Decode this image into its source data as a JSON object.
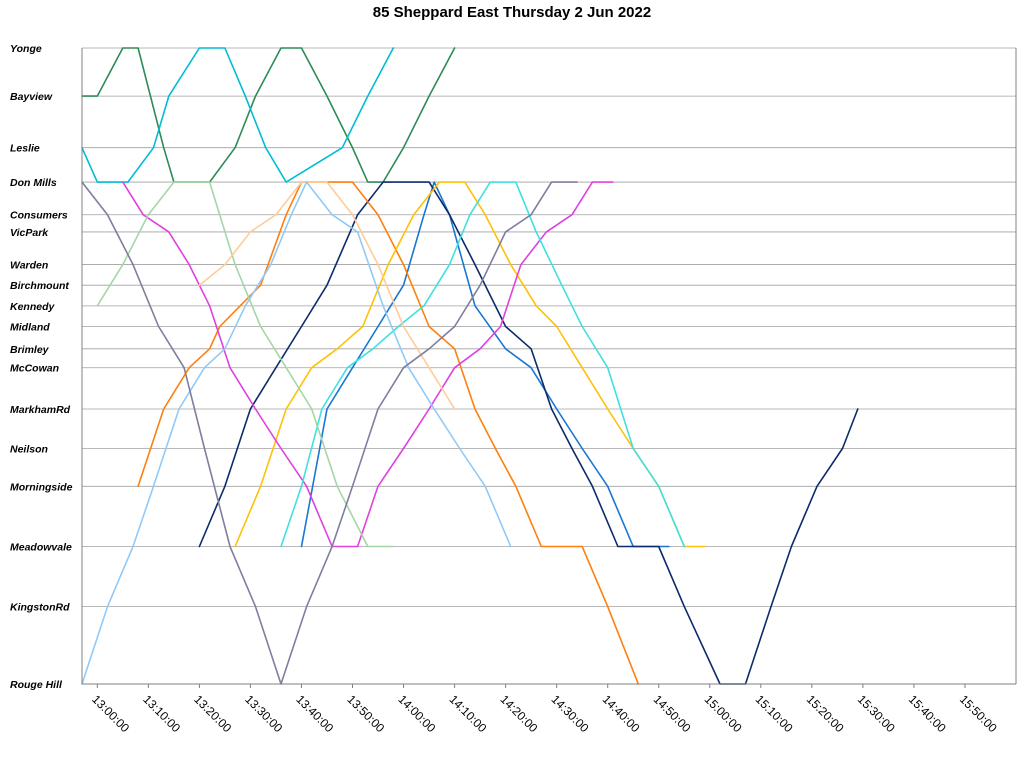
{
  "chart_data": {
    "type": "line",
    "title": "85 Sheppard East Thursday 2 Jun 2022",
    "xlabel": "",
    "ylabel": "",
    "x_axis": {
      "kind": "time",
      "range": [
        "12:57:00",
        "16:00:00"
      ],
      "ticks": [
        "13:00:00",
        "13:10:00",
        "13:20:00",
        "13:30:00",
        "13:40:00",
        "13:50:00",
        "14:00:00",
        "14:10:00",
        "14:20:00",
        "14:30:00",
        "14:40:00",
        "14:50:00",
        "15:00:00",
        "15:10:00",
        "15:20:00",
        "15:30:00",
        "15:40:00",
        "15:50:00"
      ]
    },
    "y_axis": {
      "kind": "stops",
      "stops": [
        {
          "name": "Yonge",
          "dist": 0
        },
        {
          "name": "Bayview",
          "dist": 1.4
        },
        {
          "name": "Leslie",
          "dist": 2.9
        },
        {
          "name": "Don Mills",
          "dist": 3.9
        },
        {
          "name": "Consumers",
          "dist": 4.85
        },
        {
          "name": "VicPark",
          "dist": 5.35
        },
        {
          "name": "Warden",
          "dist": 6.3
        },
        {
          "name": "Birchmount",
          "dist": 6.9
        },
        {
          "name": "Kennedy",
          "dist": 7.5
        },
        {
          "name": "Midland",
          "dist": 8.1
        },
        {
          "name": "Brimley",
          "dist": 8.75
        },
        {
          "name": "McCowan",
          "dist": 9.3
        },
        {
          "name": "MarkhamRd",
          "dist": 10.5
        },
        {
          "name": "Neilson",
          "dist": 11.65
        },
        {
          "name": "Morningside",
          "dist": 12.75
        },
        {
          "name": "Meadowvale",
          "dist": 14.5
        },
        {
          "name": "KingstonRd",
          "dist": 16.25
        },
        {
          "name": "Rouge Hill",
          "dist": 18.5
        }
      ]
    },
    "grid": true,
    "legend": "none",
    "series": [
      {
        "color": "#2e8b57",
        "points": [
          [
            "12:57",
            "Bayview"
          ],
          [
            "13:00",
            "Bayview"
          ],
          [
            "13:05",
            "Yonge"
          ],
          [
            "13:08",
            "Yonge"
          ],
          [
            "13:13",
            "Leslie"
          ],
          [
            "13:15",
            "Don Mills"
          ],
          [
            "13:22",
            "Don Mills"
          ],
          [
            "13:27",
            "Leslie"
          ],
          [
            "13:31",
            "Bayview"
          ],
          [
            "13:36",
            "Yonge"
          ],
          [
            "13:40",
            "Yonge"
          ],
          [
            "13:45",
            "Bayview"
          ],
          [
            "13:50",
            "Leslie"
          ],
          [
            "13:53",
            "Don Mills"
          ],
          [
            "13:56",
            "Don Mills"
          ],
          [
            "14:00",
            "Leslie"
          ],
          [
            "14:05",
            "Bayview"
          ],
          [
            "14:10",
            "Yonge"
          ]
        ]
      },
      {
        "color": "#00bcd4",
        "points": [
          [
            "12:57",
            "Leslie"
          ],
          [
            "13:00",
            "Don Mills"
          ],
          [
            "13:06",
            "Don Mills"
          ],
          [
            "13:11",
            "Leslie"
          ],
          [
            "13:14",
            "Bayview"
          ],
          [
            "13:20",
            "Yonge"
          ],
          [
            "13:25",
            "Yonge"
          ],
          [
            "13:29",
            "Bayview"
          ],
          [
            "13:33",
            "Leslie"
          ],
          [
            "13:37",
            "Don Mills"
          ],
          [
            "13:48",
            "Leslie"
          ],
          [
            "13:53",
            "Bayview"
          ],
          [
            "13:58",
            "Yonge"
          ]
        ]
      },
      {
        "color": "#1976d2",
        "points": [
          [
            "13:40",
            "Meadowvale"
          ],
          [
            "13:45",
            "MarkhamRd"
          ],
          [
            "13:50",
            "McCowan"
          ],
          [
            "13:55",
            "Midland"
          ],
          [
            "14:00",
            "Birchmount"
          ],
          [
            "14:04",
            "Consumers"
          ],
          [
            "14:06",
            "Don Mills"
          ],
          [
            "14:09",
            "Consumers"
          ],
          [
            "14:14",
            "Kennedy"
          ],
          [
            "14:20",
            "Brimley"
          ],
          [
            "14:25",
            "McCowan"
          ],
          [
            "14:30",
            "MarkhamRd"
          ],
          [
            "14:35",
            "Neilson"
          ],
          [
            "14:40",
            "Morningside"
          ],
          [
            "14:45",
            "Meadowvale"
          ],
          [
            "14:52",
            "Meadowvale"
          ]
        ]
      },
      {
        "color": "#0d2b6b",
        "points": [
          [
            "13:20",
            "Meadowvale"
          ],
          [
            "13:25",
            "Morningside"
          ],
          [
            "13:30",
            "MarkhamRd"
          ],
          [
            "13:35",
            "McCowan"
          ],
          [
            "13:40",
            "Midland"
          ],
          [
            "13:45",
            "Birchmount"
          ],
          [
            "13:51",
            "Consumers"
          ],
          [
            "13:56",
            "Don Mills"
          ],
          [
            "14:05",
            "Don Mills"
          ],
          [
            "14:09",
            "Consumers"
          ],
          [
            "14:14",
            "Warden"
          ],
          [
            "14:20",
            "Midland"
          ],
          [
            "14:25",
            "Brimley"
          ],
          [
            "14:29",
            "MarkhamRd"
          ],
          [
            "14:33",
            "Neilson"
          ],
          [
            "14:37",
            "Morningside"
          ],
          [
            "14:42",
            "Meadowvale"
          ],
          [
            "14:50",
            "Meadowvale"
          ],
          [
            "14:55",
            "KingstonRd"
          ],
          [
            "15:02",
            "Rouge Hill"
          ],
          [
            "15:07",
            "Rouge Hill"
          ],
          [
            "15:12",
            "KingstonRd"
          ],
          [
            "15:16",
            "Meadowvale"
          ],
          [
            "15:21",
            "Morningside"
          ],
          [
            "15:26",
            "Neilson"
          ],
          [
            "15:29",
            "MarkhamRd"
          ]
        ]
      },
      {
        "color": "#ff7f0e",
        "points": [
          [
            "13:08",
            "Morningside"
          ],
          [
            "13:13",
            "MarkhamRd"
          ],
          [
            "13:18",
            "McCowan"
          ],
          [
            "13:22",
            "Brimley"
          ],
          [
            "13:24",
            "Midland"
          ],
          [
            "13:28",
            "Kennedy"
          ],
          [
            "13:32",
            "Birchmount"
          ],
          [
            "13:37",
            "Consumers"
          ],
          [
            "13:40",
            "Don Mills"
          ],
          [
            "13:50",
            "Don Mills"
          ],
          [
            "13:55",
            "Consumers"
          ],
          [
            "14:00",
            "Warden"
          ],
          [
            "14:05",
            "Midland"
          ],
          [
            "14:10",
            "Brimley"
          ],
          [
            "14:14",
            "MarkhamRd"
          ],
          [
            "14:18",
            "Neilson"
          ],
          [
            "14:22",
            "Morningside"
          ],
          [
            "14:27",
            "Meadowvale"
          ],
          [
            "14:35",
            "Meadowvale"
          ],
          [
            "14:40",
            "KingstonRd"
          ],
          [
            "14:46",
            "Rouge Hill"
          ]
        ]
      },
      {
        "color": "#ffc107",
        "points": [
          [
            "13:27",
            "Meadowvale"
          ],
          [
            "13:32",
            "Morningside"
          ],
          [
            "13:37",
            "MarkhamRd"
          ],
          [
            "13:42",
            "McCowan"
          ],
          [
            "13:47",
            "Brimley"
          ],
          [
            "13:52",
            "Midland"
          ],
          [
            "13:57",
            "Warden"
          ],
          [
            "14:02",
            "Consumers"
          ],
          [
            "14:07",
            "Don Mills"
          ],
          [
            "14:12",
            "Don Mills"
          ],
          [
            "14:16",
            "Consumers"
          ],
          [
            "14:21",
            "Warden"
          ],
          [
            "14:26",
            "Kennedy"
          ],
          [
            "14:30",
            "Midland"
          ],
          [
            "14:35",
            "McCowan"
          ],
          [
            "14:40",
            "MarkhamRd"
          ],
          [
            "14:45",
            "Neilson"
          ],
          [
            "14:50",
            "Morningside"
          ],
          [
            "14:55",
            "Meadowvale"
          ],
          [
            "14:59",
            "Meadowvale"
          ]
        ]
      },
      {
        "color": "#e040e0",
        "points": [
          [
            "13:05",
            "Don Mills"
          ],
          [
            "13:09",
            "Consumers"
          ],
          [
            "13:14",
            "VicPark"
          ],
          [
            "13:18",
            "Warden"
          ],
          [
            "13:22",
            "Kennedy"
          ],
          [
            "13:26",
            "McCowan"
          ],
          [
            "13:31",
            "MarkhamRd"
          ],
          [
            "13:36",
            "Neilson"
          ],
          [
            "13:41",
            "Morningside"
          ],
          [
            "13:46",
            "Meadowvale"
          ],
          [
            "13:51",
            "Meadowvale"
          ],
          [
            "13:55",
            "Morningside"
          ],
          [
            "14:00",
            "Neilson"
          ],
          [
            "14:05",
            "MarkhamRd"
          ],
          [
            "14:10",
            "McCowan"
          ],
          [
            "14:15",
            "Brimley"
          ],
          [
            "14:19",
            "Midland"
          ],
          [
            "14:23",
            "Warden"
          ],
          [
            "14:28",
            "VicPark"
          ],
          [
            "14:33",
            "Consumers"
          ],
          [
            "14:37",
            "Don Mills"
          ],
          [
            "14:41",
            "Don Mills"
          ]
        ]
      },
      {
        "color": "#40e0e0",
        "points": [
          [
            "13:36",
            "Meadowvale"
          ],
          [
            "13:40",
            "Morningside"
          ],
          [
            "13:44",
            "MarkhamRd"
          ],
          [
            "13:49",
            "McCowan"
          ],
          [
            "13:54",
            "Brimley"
          ],
          [
            "13:59",
            "Midland"
          ],
          [
            "14:04",
            "Kennedy"
          ],
          [
            "14:09",
            "Warden"
          ],
          [
            "14:13",
            "Consumers"
          ],
          [
            "14:17",
            "Don Mills"
          ],
          [
            "14:22",
            "Don Mills"
          ],
          [
            "14:26",
            "VicPark"
          ],
          [
            "14:31",
            "Birchmount"
          ],
          [
            "14:35",
            "Midland"
          ],
          [
            "14:40",
            "McCowan"
          ],
          [
            "14:45",
            "Neilson"
          ],
          [
            "14:50",
            "Morningside"
          ],
          [
            "14:55",
            "Meadowvale"
          ]
        ]
      },
      {
        "color": "#a5d6a7",
        "points": [
          [
            "13:00",
            "Kennedy"
          ],
          [
            "13:05",
            "Warden"
          ],
          [
            "13:10",
            "Consumers"
          ],
          [
            "13:15",
            "Don Mills"
          ],
          [
            "13:22",
            "Don Mills"
          ],
          [
            "13:27",
            "Warden"
          ],
          [
            "13:32",
            "Midland"
          ],
          [
            "13:37",
            "McCowan"
          ],
          [
            "13:42",
            "MarkhamRd"
          ],
          [
            "13:47",
            "Morningside"
          ],
          [
            "13:53",
            "Meadowvale"
          ],
          [
            "13:58",
            "Meadowvale"
          ]
        ]
      },
      {
        "color": "#ffcc99",
        "points": [
          [
            "13:20",
            "Birchmount"
          ],
          [
            "13:25",
            "Warden"
          ],
          [
            "13:30",
            "VicPark"
          ],
          [
            "13:35",
            "Consumers"
          ],
          [
            "13:40",
            "Don Mills"
          ],
          [
            "13:45",
            "Don Mills"
          ],
          [
            "13:50",
            "Consumers"
          ],
          [
            "13:55",
            "Warden"
          ],
          [
            "14:00",
            "Midland"
          ],
          [
            "14:05",
            "McCowan"
          ],
          [
            "14:10",
            "MarkhamRd"
          ]
        ]
      },
      {
        "color": "#90caf9",
        "points": [
          [
            "12:57",
            "Rouge Hill"
          ],
          [
            "13:02",
            "KingstonRd"
          ],
          [
            "13:07",
            "Meadowvale"
          ],
          [
            "13:11",
            "Morningside"
          ],
          [
            "13:16",
            "MarkhamRd"
          ],
          [
            "13:21",
            "McCowan"
          ],
          [
            "13:25",
            "Brimley"
          ],
          [
            "13:29",
            "Kennedy"
          ],
          [
            "13:34",
            "Warden"
          ],
          [
            "13:38",
            "Consumers"
          ],
          [
            "13:41",
            "Don Mills"
          ],
          [
            "13:46",
            "Consumers"
          ],
          [
            "13:51",
            "VicPark"
          ],
          [
            "13:56",
            "Kennedy"
          ],
          [
            "14:01",
            "McCowan"
          ],
          [
            "14:06",
            "MarkhamRd"
          ],
          [
            "14:11",
            "Neilson"
          ],
          [
            "14:16",
            "Morningside"
          ],
          [
            "14:21",
            "Meadowvale"
          ]
        ]
      },
      {
        "color": "#7e7e9e",
        "points": [
          [
            "12:57",
            "Don Mills"
          ],
          [
            "13:02",
            "Consumers"
          ],
          [
            "13:07",
            "Warden"
          ],
          [
            "13:12",
            "Midland"
          ],
          [
            "13:17",
            "McCowan"
          ],
          [
            "13:21",
            "Neilson"
          ],
          [
            "13:26",
            "Meadowvale"
          ],
          [
            "13:31",
            "KingstonRd"
          ],
          [
            "13:36",
            "Rouge Hill"
          ],
          [
            "13:41",
            "KingstonRd"
          ],
          [
            "13:46",
            "Meadowvale"
          ],
          [
            "13:50",
            "Morningside"
          ],
          [
            "13:55",
            "MarkhamRd"
          ],
          [
            "14:00",
            "McCowan"
          ],
          [
            "14:05",
            "Brimley"
          ],
          [
            "14:10",
            "Midland"
          ],
          [
            "14:15",
            "Birchmount"
          ],
          [
            "14:20",
            "VicPark"
          ],
          [
            "14:25",
            "Consumers"
          ],
          [
            "14:29",
            "Don Mills"
          ],
          [
            "14:34",
            "Don Mills"
          ]
        ]
      }
    ]
  }
}
